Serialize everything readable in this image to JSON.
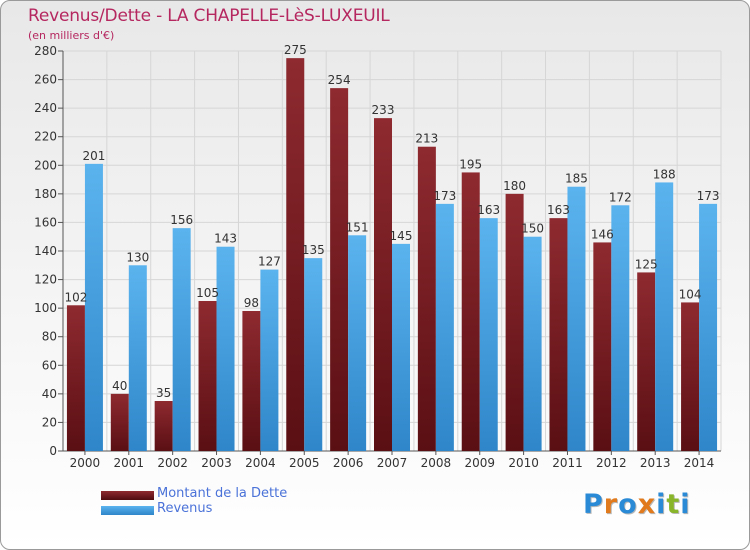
{
  "title": "Revenus/Dette - LA CHAPELLE-LèS-LUXEUIL",
  "subtitle": "(en milliers d'€)",
  "colors": {
    "debt": "#7a1b20",
    "revenue": "#4ea6e8",
    "title": "#b5275f",
    "legend_text": "#4a72d8"
  },
  "logo": {
    "text": "Proxiti",
    "letters": [
      "P",
      "r",
      "o",
      "x",
      "i",
      "t",
      "i"
    ],
    "letter_colors": [
      "#2a8ad6",
      "#e07a1c",
      "#2a8ad6",
      "#e07a1c",
      "#2a8ad6",
      "#88b52a",
      "#2a8ad6"
    ]
  },
  "legend": [
    {
      "label": "Montant de la Dette",
      "color_key": "debt"
    },
    {
      "label": "Revenus",
      "color_key": "revenue"
    }
  ],
  "chart_data": {
    "type": "bar",
    "title": "Revenus/Dette - LA CHAPELLE-LèS-LUXEUIL",
    "subtitle": "(en milliers d'€)",
    "categories": [
      "2000",
      "2001",
      "2002",
      "2003",
      "2004",
      "2005",
      "2006",
      "2007",
      "2008",
      "2009",
      "2010",
      "2011",
      "2012",
      "2013",
      "2014"
    ],
    "series": [
      {
        "name": "Montant de la Dette",
        "color": "#7a1b20",
        "values": [
          102,
          40,
          35,
          105,
          98,
          275,
          254,
          233,
          213,
          195,
          180,
          163,
          146,
          125,
          104
        ]
      },
      {
        "name": "Revenus",
        "color": "#4ea6e8",
        "values": [
          201,
          130,
          156,
          143,
          127,
          135,
          151,
          145,
          173,
          163,
          150,
          185,
          172,
          188,
          173
        ]
      }
    ],
    "ylim": [
      0,
      280
    ],
    "yticks": [
      0,
      20,
      40,
      60,
      80,
      100,
      120,
      140,
      160,
      180,
      200,
      220,
      240,
      260,
      280
    ],
    "grid": true,
    "legend_position": "bottom-left"
  }
}
